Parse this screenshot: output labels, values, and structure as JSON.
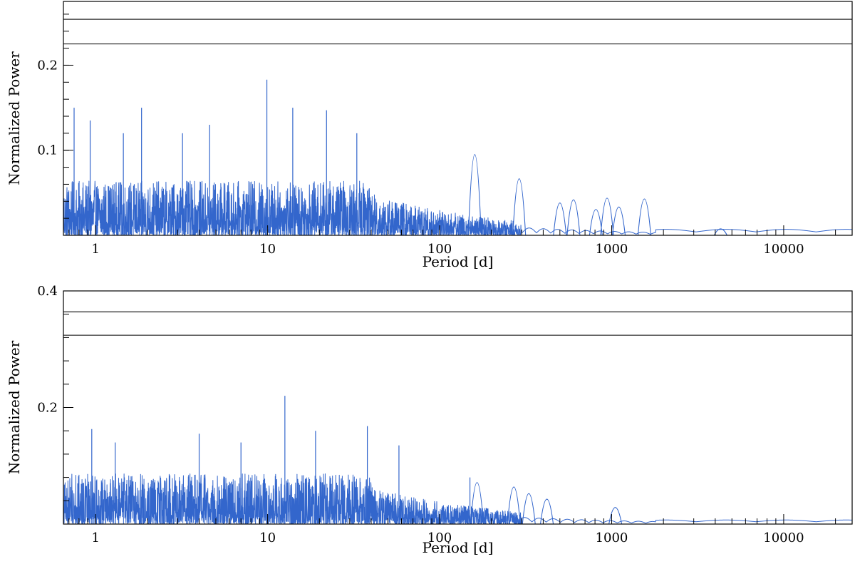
{
  "chart_data": [
    {
      "type": "line",
      "xlabel": "Period [d]",
      "ylabel": "Normalized Power",
      "x_scale": "log",
      "xlim": [
        0.65,
        25000
      ],
      "ylim": [
        0,
        0.275
      ],
      "x_ticks": [
        1,
        10,
        100,
        1000,
        10000
      ],
      "x_tick_labels": [
        "1",
        "10",
        "100",
        "1000",
        "10000"
      ],
      "y_ticks": [
        0.1,
        0.2
      ],
      "y_tick_labels": [
        "0.1",
        "0.2"
      ],
      "grid": false,
      "color": "#3366cc",
      "threshold_lines": [
        0.225,
        0.254
      ],
      "peaks": [
        {
          "x": 0.75,
          "y": 0.15
        },
        {
          "x": 0.93,
          "y": 0.135
        },
        {
          "x": 1.45,
          "y": 0.12
        },
        {
          "x": 1.85,
          "y": 0.15
        },
        {
          "x": 3.2,
          "y": 0.12
        },
        {
          "x": 4.6,
          "y": 0.13
        },
        {
          "x": 9.9,
          "y": 0.183
        },
        {
          "x": 14.0,
          "y": 0.15
        },
        {
          "x": 22.0,
          "y": 0.147
        },
        {
          "x": 33.0,
          "y": 0.12
        },
        {
          "x": 160,
          "y": 0.1
        },
        {
          "x": 290,
          "y": 0.07
        },
        {
          "x": 500,
          "y": 0.04
        },
        {
          "x": 600,
          "y": 0.044
        },
        {
          "x": 810,
          "y": 0.032
        },
        {
          "x": 940,
          "y": 0.046
        },
        {
          "x": 1100,
          "y": 0.035
        },
        {
          "x": 1550,
          "y": 0.045
        },
        {
          "x": 4300,
          "y": 0.008
        }
      ]
    },
    {
      "type": "line",
      "xlabel": "Period [d]",
      "ylabel": "Normalized Power",
      "x_scale": "log",
      "xlim": [
        0.65,
        25000
      ],
      "ylim": [
        0,
        0.4
      ],
      "x_ticks": [
        1,
        10,
        100,
        1000,
        10000
      ],
      "x_tick_labels": [
        "1",
        "10",
        "100",
        "1000",
        "10000"
      ],
      "y_ticks": [
        0.2,
        0.4
      ],
      "y_tick_labels": [
        "0.2",
        "0.4"
      ],
      "grid": false,
      "color": "#3366cc",
      "threshold_lines": [
        0.324,
        0.364
      ],
      "peaks": [
        {
          "x": 0.95,
          "y": 0.163
        },
        {
          "x": 1.3,
          "y": 0.14
        },
        {
          "x": 4.0,
          "y": 0.155
        },
        {
          "x": 7.0,
          "y": 0.14
        },
        {
          "x": 12.6,
          "y": 0.22
        },
        {
          "x": 19.0,
          "y": 0.16
        },
        {
          "x": 38.0,
          "y": 0.168
        },
        {
          "x": 58.0,
          "y": 0.135
        },
        {
          "x": 150,
          "y": 0.08
        },
        {
          "x": 165,
          "y": 0.075
        },
        {
          "x": 270,
          "y": 0.067
        },
        {
          "x": 330,
          "y": 0.055
        },
        {
          "x": 420,
          "y": 0.045
        },
        {
          "x": 1050,
          "y": 0.03
        }
      ]
    }
  ]
}
